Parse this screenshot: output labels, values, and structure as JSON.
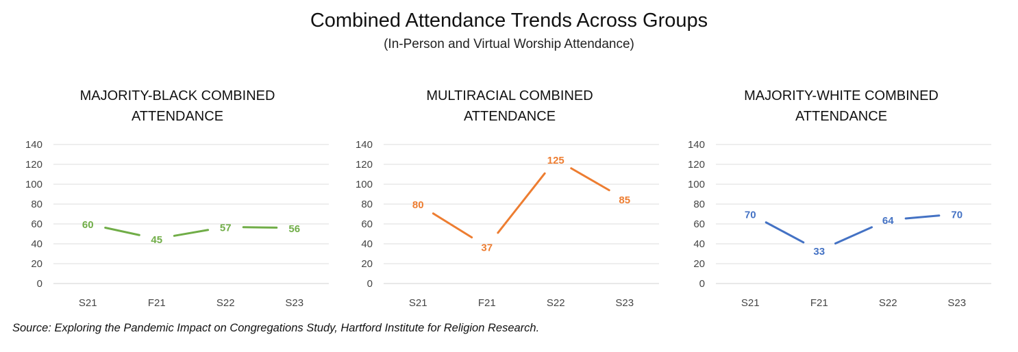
{
  "header": {
    "title": "Combined Attendance Trends Across Groups",
    "subtitle": "(In-Person and Virtual Worship Attendance)"
  },
  "source": "Source: Exploring the Pandemic Impact on Congregations Study, Hartford Institute for Religion Research.",
  "chart_data": [
    {
      "type": "line",
      "title_lines": [
        "MAJORITY-BLACK COMBINED",
        "ATTENDANCE"
      ],
      "categories": [
        "S21",
        "F21",
        "S22",
        "S23"
      ],
      "values": [
        60,
        45,
        57,
        56
      ],
      "color": "#70AD47",
      "ylim": [
        0,
        140
      ],
      "yticks": [
        0,
        20,
        40,
        60,
        80,
        100,
        120,
        140
      ],
      "grid": true,
      "xlabel": "",
      "ylabel": ""
    },
    {
      "type": "line",
      "title_lines": [
        "MULTIRACIAL COMBINED",
        "ATTENDANCE"
      ],
      "categories": [
        "S21",
        "F21",
        "S22",
        "S23"
      ],
      "values": [
        80,
        37,
        125,
        85
      ],
      "color": "#ED7D31",
      "ylim": [
        0,
        140
      ],
      "yticks": [
        0,
        20,
        40,
        60,
        80,
        100,
        120,
        140
      ],
      "grid": true,
      "xlabel": "",
      "ylabel": ""
    },
    {
      "type": "line",
      "title_lines": [
        "MAJORITY-WHITE COMBINED",
        "ATTENDANCE"
      ],
      "categories": [
        "S21",
        "F21",
        "S22",
        "S23"
      ],
      "values": [
        70,
        33,
        64,
        70
      ],
      "color": "#4472C4",
      "ylim": [
        0,
        140
      ],
      "yticks": [
        0,
        20,
        40,
        60,
        80,
        100,
        120,
        140
      ],
      "grid": true,
      "xlabel": "",
      "ylabel": ""
    }
  ]
}
